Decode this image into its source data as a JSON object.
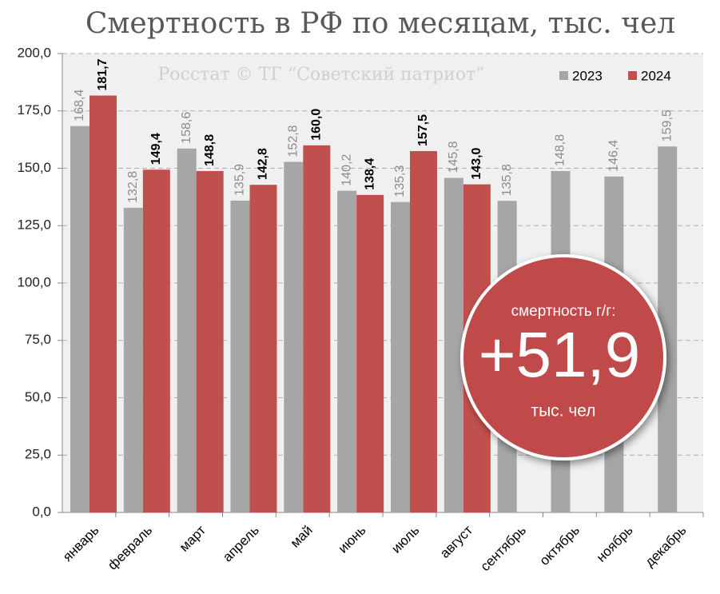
{
  "chart_data": {
    "type": "bar",
    "title": "Смертность в РФ по месяцам, тыс. чел",
    "annotations": [
      "Росстат © ТГ “Советский патриот”",
      "смертность г/г:",
      "+51,9",
      "тыс. чел"
    ],
    "categories": [
      "январь",
      "февраль",
      "март",
      "апрель",
      "май",
      "июнь",
      "июль",
      "август",
      "сентябрь",
      "октябрь",
      "ноябрь",
      "декабрь"
    ],
    "series": [
      {
        "name": "2023",
        "color": "#a6a6a6",
        "values": [
          168.4,
          132.8,
          158.6,
          135.9,
          152.8,
          140.2,
          135.3,
          145.8,
          135.8,
          148.8,
          146.4,
          159.5
        ],
        "value_labels": [
          "168,4",
          "132,8",
          "158,6",
          "135,9",
          "152,8",
          "140,2",
          "135,3",
          "145,8",
          "135,8",
          "148,8",
          "146,4",
          "159,5"
        ]
      },
      {
        "name": "2024",
        "color": "#c0504d",
        "values": [
          181.7,
          149.4,
          148.8,
          142.8,
          160.0,
          138.4,
          157.5,
          143.0,
          null,
          null,
          null,
          null
        ],
        "value_labels": [
          "181,7",
          "149,4",
          "148,8",
          "142,8",
          "160,0",
          "138,4",
          "157,5",
          "143,0",
          null,
          null,
          null,
          null
        ]
      }
    ],
    "ylim": [
      0,
      200
    ],
    "yticks": [
      {
        "value": 0,
        "label": "0,0"
      },
      {
        "value": 25,
        "label": "25,0"
      },
      {
        "value": 50,
        "label": "50,0"
      },
      {
        "value": 75,
        "label": "75,0"
      },
      {
        "value": 100,
        "label": "100,0"
      },
      {
        "value": 125,
        "label": "125,0"
      },
      {
        "value": 150,
        "label": "150,0"
      },
      {
        "value": 175,
        "label": "175,0"
      },
      {
        "value": 200,
        "label": "200,0"
      }
    ],
    "grid": true,
    "legend": "top-right"
  }
}
